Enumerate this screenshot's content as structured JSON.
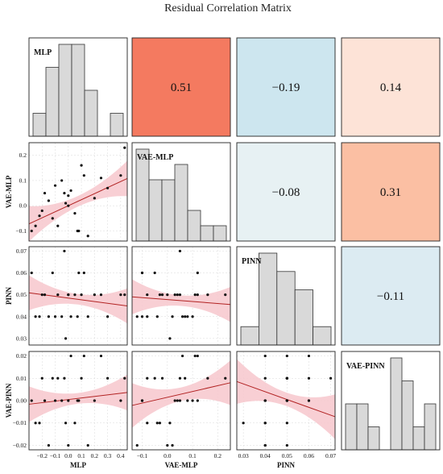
{
  "chart_data": {
    "type": "pair-grid",
    "title": "Residual Correlation Matrix",
    "variables": [
      "MLP",
      "VAE-MLP",
      "PINN",
      "VAE-PINN"
    ],
    "correlations": [
      {
        "row": 0,
        "col": 1,
        "value": 0.51,
        "label": "0.51",
        "color": "#f47a60"
      },
      {
        "row": 0,
        "col": 2,
        "value": -0.19,
        "label": "−0.19",
        "color": "#cde6ef"
      },
      {
        "row": 0,
        "col": 3,
        "value": 0.14,
        "label": "0.14",
        "color": "#fde3d7"
      },
      {
        "row": 1,
        "col": 2,
        "value": -0.08,
        "label": "−0.08",
        "color": "#e7f1f3"
      },
      {
        "row": 1,
        "col": 3,
        "value": 0.31,
        "label": "0.31",
        "color": "#fbbfa3"
      },
      {
        "row": 2,
        "col": 3,
        "value": -0.11,
        "label": "−0.11",
        "color": "#dcebf2"
      }
    ],
    "axes": {
      "MLP": {
        "range": [
          -0.3,
          0.45
        ],
        "ticks": [
          -0.2,
          -0.1,
          0.0,
          0.1,
          0.2,
          0.3,
          0.4
        ],
        "tick_labels": [
          "−0.2",
          "−0.1",
          "0.0",
          "0.1",
          "0.2",
          "0.3",
          "0.4"
        ]
      },
      "VAE-MLP": {
        "range": [
          -0.14,
          0.25
        ],
        "ticks": [
          -0.1,
          0.0,
          0.1,
          0.2
        ],
        "tick_labels": [
          "−0.1",
          "0.0",
          "0.1",
          "0.2"
        ]
      },
      "PINN": {
        "range": [
          0.027,
          0.072
        ],
        "ticks": [
          0.03,
          0.04,
          0.05,
          0.06,
          0.07
        ],
        "tick_labels": [
          "0.03",
          "0.04",
          "0.05",
          "0.06",
          "0.07"
        ]
      },
      "VAE-PINN": {
        "range": [
          -0.022,
          0.022
        ],
        "ticks": [
          -0.02,
          -0.01,
          0.0,
          0.01,
          0.02
        ],
        "tick_labels": [
          "−0.02",
          "−0.01",
          "0.00",
          "0.01",
          "0.02"
        ]
      }
    },
    "histograms": {
      "MLP": {
        "counts": [
          1,
          3,
          4,
          4,
          2,
          0,
          1
        ]
      },
      "VAE-MLP": {
        "counts": [
          6,
          4,
          4,
          5,
          2,
          1,
          1
        ]
      },
      "PINN": {
        "counts": [
          1,
          5,
          4,
          3,
          1
        ]
      },
      "VAE-PINN": {
        "counts": [
          2,
          2,
          1,
          0,
          4,
          3,
          1,
          2
        ]
      }
    },
    "scatter": {
      "MLP": [
        -0.28,
        -0.25,
        -0.2,
        -0.18,
        -0.15,
        -0.12,
        -0.1,
        -0.08,
        -0.05,
        -0.03,
        -0.02,
        0.0,
        0.02,
        0.05,
        0.07,
        0.1,
        0.12,
        0.15,
        0.2,
        0.25,
        0.3,
        0.4,
        0.43,
        -0.22,
        0.0,
        0.08
      ],
      "VAE-MLP": [
        -0.1,
        -0.08,
        -0.02,
        0.05,
        0.02,
        -0.05,
        0.08,
        -0.08,
        0.1,
        0.05,
        0.01,
        0.04,
        0.06,
        -0.03,
        -0.1,
        0.16,
        0.12,
        -0.12,
        0.03,
        0.11,
        0.07,
        0.12,
        0.23,
        -0.04,
        0.0,
        -0.1
      ],
      "PINN": [
        0.06,
        0.04,
        0.05,
        0.05,
        0.04,
        0.06,
        0.04,
        0.05,
        0.04,
        0.07,
        0.03,
        0.05,
        0.04,
        0.05,
        0.04,
        0.05,
        0.06,
        0.04,
        0.05,
        0.05,
        0.04,
        0.05,
        0.05,
        0.04,
        0.05,
        0.06
      ],
      "VAE-PINN": [
        0.0,
        -0.01,
        0.01,
        0.0,
        -0.02,
        0.01,
        0.0,
        0.01,
        0.0,
        0.01,
        -0.01,
        0.0,
        0.02,
        -0.01,
        0.0,
        0.01,
        0.02,
        -0.02,
        0.0,
        0.02,
        0.01,
        0.0,
        0.01,
        -0.01,
        -0.02,
        0.0
      ]
    },
    "fits": {
      "1-0": {
        "slope": 0.24,
        "intercept": -0.0,
        "band": 0.035
      },
      "2-0": {
        "slope": -0.008,
        "intercept": 0.0485,
        "band": 0.004
      },
      "2-1": {
        "slope": -0.009,
        "intercept": 0.0478,
        "band": 0.004
      },
      "3-0": {
        "slope": 0.007,
        "intercept": 0.0005,
        "band": 0.004
      },
      "3-1": {
        "slope": 0.026,
        "intercept": 0.0015,
        "band": 0.005
      },
      "3-2": {
        "slope": -0.35,
        "intercept": 0.018,
        "band": 0.005
      }
    }
  }
}
